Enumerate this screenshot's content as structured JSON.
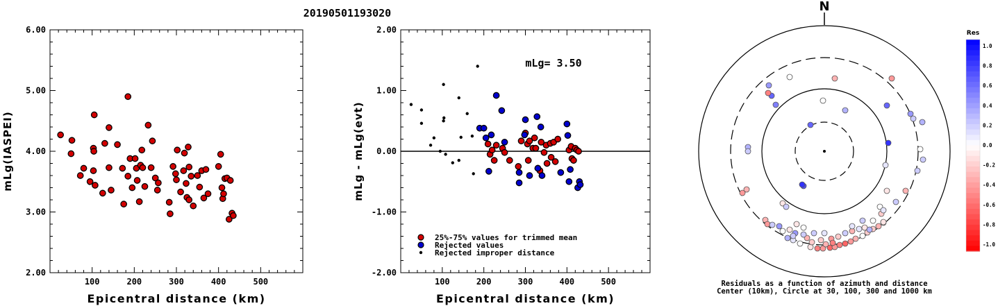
{
  "title": "20190501193020",
  "chart_data": [
    {
      "type": "scatter",
      "xlabel": "Epicentral distance (km)",
      "ylabel": "mLg(IASPEI)",
      "xlim": [
        0,
        600
      ],
      "ylim": [
        2.0,
        6.0
      ],
      "x_ticks": [
        "100",
        "200",
        "300",
        "400",
        "500"
      ],
      "y_ticks": [
        "2.00",
        "3.00",
        "4.00",
        "5.00",
        "6.00"
      ],
      "series": [
        {
          "color": "#d40000",
          "points": [
            [
              25,
              4.27
            ],
            [
              52,
              4.18
            ],
            [
              50,
              3.96
            ],
            [
              72,
              3.6
            ],
            [
              80,
              3.72
            ],
            [
              95,
              3.5
            ],
            [
              103,
              4.05
            ],
            [
              104,
              4.0
            ],
            [
              105,
              4.6
            ],
            [
              103,
              3.68
            ],
            [
              107,
              3.44
            ],
            [
              125,
              3.31
            ],
            [
              130,
              4.13
            ],
            [
              140,
              3.73
            ],
            [
              140,
              4.39
            ],
            [
              145,
              3.36
            ],
            [
              160,
              4.11
            ],
            [
              172,
              3.72
            ],
            [
              175,
              3.13
            ],
            [
              185,
              4.9
            ],
            [
              185,
              3.59
            ],
            [
              190,
              3.88
            ],
            [
              195,
              3.4
            ],
            [
              202,
              3.88
            ],
            [
              205,
              3.72
            ],
            [
              207,
              3.52
            ],
            [
              212,
              3.17
            ],
            [
              215,
              3.77
            ],
            [
              218,
              4.02
            ],
            [
              220,
              3.73
            ],
            [
              225,
              3.42
            ],
            [
              233,
              4.43
            ],
            [
              240,
              3.73
            ],
            [
              243,
              4.17
            ],
            [
              250,
              3.56
            ],
            [
              255,
              3.36
            ],
            [
              257,
              3.48
            ],
            [
              283,
              3.16
            ],
            [
              285,
              2.97
            ],
            [
              292,
              3.75
            ],
            [
              298,
              3.63
            ],
            [
              300,
              3.53
            ],
            [
              302,
              4.02
            ],
            [
              310,
              3.33
            ],
            [
              317,
              3.68
            ],
            [
              319,
              3.97
            ],
            [
              323,
              3.47
            ],
            [
              325,
              3.24
            ],
            [
              328,
              4.07
            ],
            [
              330,
              3.2
            ],
            [
              330,
              3.74
            ],
            [
              335,
              3.59
            ],
            [
              340,
              3.1
            ],
            [
              350,
              3.6
            ],
            [
              355,
              3.41
            ],
            [
              360,
              3.68
            ],
            [
              365,
              3.23
            ],
            [
              370,
              3.7
            ],
            [
              375,
              3.3
            ],
            [
              400,
              3.75
            ],
            [
              405,
              3.95
            ],
            [
              408,
              3.4
            ],
            [
              410,
              3.22
            ],
            [
              412,
              3.3
            ],
            [
              415,
              3.55
            ],
            [
              420,
              3.56
            ],
            [
              425,
              2.88
            ],
            [
              428,
              3.52
            ],
            [
              432,
              2.98
            ],
            [
              435,
              2.94
            ]
          ]
        }
      ]
    },
    {
      "type": "scatter",
      "xlabel": "Epicentral distance (km)",
      "ylabel": "mLg - mLg(evt)",
      "xlim": [
        0,
        600
      ],
      "ylim": [
        -2.0,
        2.0
      ],
      "x_ticks": [
        "100",
        "200",
        "300",
        "400",
        "500"
      ],
      "y_ticks": [
        "-2.00",
        "-1.00",
        "0.00",
        "1.00",
        "2.00"
      ],
      "annotation": "mLg= 3.50",
      "series": [
        {
          "name": "25%-75% values for trimmed mean",
          "color": "#d40000",
          "points": [
            [
              210,
              0.12
            ],
            [
              215,
              -0.05
            ],
            [
              220,
              0.02
            ],
            [
              225,
              -0.15
            ],
            [
              230,
              0.1
            ],
            [
              245,
              0.05
            ],
            [
              250,
              -0.02
            ],
            [
              262,
              -0.15
            ],
            [
              283,
              -0.25
            ],
            [
              290,
              0.17
            ],
            [
              300,
              0.3
            ],
            [
              305,
              0.12
            ],
            [
              307,
              -0.15
            ],
            [
              310,
              0.17
            ],
            [
              318,
              0.05
            ],
            [
              322,
              0.22
            ],
            [
              325,
              0.05
            ],
            [
              330,
              -0.28
            ],
            [
              335,
              -0.32
            ],
            [
              338,
              0.15
            ],
            [
              345,
              -0.02
            ],
            [
              350,
              0.1
            ],
            [
              352,
              -0.2
            ],
            [
              360,
              0.13
            ],
            [
              362,
              -0.1
            ],
            [
              368,
              0.15
            ],
            [
              372,
              -0.17
            ],
            [
              378,
              0.2
            ],
            [
              405,
              0.02
            ],
            [
              410,
              0.08
            ],
            [
              412,
              -0.12
            ],
            [
              416,
              -0.15
            ],
            [
              420,
              0.05
            ],
            [
              424,
              0.02
            ],
            [
              428,
              0.0
            ]
          ]
        },
        {
          "name": "Rejected values",
          "color": "#0000d0",
          "points": [
            [
              190,
              0.38
            ],
            [
              200,
              0.38
            ],
            [
              205,
              0.22
            ],
            [
              212,
              -0.33
            ],
            [
              218,
              0.27
            ],
            [
              230,
              0.92
            ],
            [
              243,
              0.67
            ],
            [
              250,
              0.15
            ],
            [
              285,
              -0.52
            ],
            [
              285,
              -0.35
            ],
            [
              298,
              0.27
            ],
            [
              300,
              0.52
            ],
            [
              310,
              -0.4
            ],
            [
              328,
              0.57
            ],
            [
              330,
              -0.28
            ],
            [
              337,
              0.4
            ],
            [
              340,
              -0.4
            ],
            [
              385,
              -0.35
            ],
            [
              400,
              0.45
            ],
            [
              402,
              0.26
            ],
            [
              405,
              -0.5
            ],
            [
              408,
              -0.3
            ],
            [
              426,
              -0.6
            ],
            [
              430,
              -0.5
            ],
            [
              432,
              -0.55
            ]
          ]
        },
        {
          "name": "Rejected improper distance",
          "color": "#000000",
          "points": [
            [
              25,
              0.77
            ],
            [
              50,
              0.68
            ],
            [
              50,
              0.46
            ],
            [
              72,
              0.1
            ],
            [
              80,
              0.22
            ],
            [
              95,
              0.0
            ],
            [
              103,
              0.5
            ],
            [
              103,
              1.1
            ],
            [
              104,
              0.55
            ],
            [
              108,
              -0.05
            ],
            [
              125,
              -0.19
            ],
            [
              140,
              0.88
            ],
            [
              140,
              -0.15
            ],
            [
              145,
              0.23
            ],
            [
              160,
              0.62
            ],
            [
              172,
              0.25
            ],
            [
              175,
              -0.37
            ],
            [
              185,
              1.4
            ]
          ]
        }
      ]
    },
    {
      "type": "scatter",
      "subtype": "polar-residual-map",
      "north_label": "N",
      "caption_line1": "Residuals as a function of azimuth and distance",
      "caption_line2": "Center (10km), Circle at 30, 100, 300 and 1000 km",
      "colorbar_title": "Res",
      "colorbar_ticks": [
        "1.0",
        "0.8",
        "0.6",
        "0.4",
        "0.2",
        "0.0",
        "-0.2",
        "-0.4",
        "-0.6",
        "-0.8",
        "-1.0"
      ],
      "colorbar_range": [
        -1.0,
        1.0
      ],
      "points_res": [
        [
          -80,
          -95,
          0.4
        ],
        [
          -76,
          -80,
          0.6
        ],
        [
          -70,
          -67,
          0.5
        ],
        [
          -81,
          -84,
          -0.5
        ],
        [
          -50,
          -107,
          0.0
        ],
        [
          15,
          -105,
          -0.3
        ],
        [
          97,
          -105,
          -0.4
        ],
        [
          -2,
          -73,
          0.0
        ],
        [
          30,
          -59,
          0.3
        ],
        [
          90,
          -66,
          0.6
        ],
        [
          124,
          -54,
          0.4
        ],
        [
          128,
          -47,
          0.2
        ],
        [
          141,
          -42,
          0.3
        ],
        [
          -20,
          -38,
          0.6
        ],
        [
          92,
          -12,
          0.8
        ],
        [
          -110,
          -6,
          0.3
        ],
        [
          138,
          -3,
          0.0
        ],
        [
          -110,
          0,
          0.2
        ],
        [
          -112,
          55,
          -0.3
        ],
        [
          -118,
          60,
          -0.4
        ],
        [
          -30,
          50,
          0.7
        ],
        [
          -32,
          48,
          0.8
        ],
        [
          142,
          12,
          0.2
        ],
        [
          134,
          28,
          0.2
        ],
        [
          90,
          57,
          -0.1
        ],
        [
          88,
          20,
          0.1
        ],
        [
          117,
          57,
          -0.3
        ],
        [
          103,
          73,
          0.2
        ],
        [
          -60,
          75,
          -0.1
        ],
        [
          -55,
          80,
          0.2
        ],
        [
          80,
          80,
          0.0
        ],
        [
          82,
          90,
          -0.2
        ],
        [
          85,
          103,
          -0.1
        ],
        [
          -85,
          99,
          -0.3
        ],
        [
          -82,
          105,
          -0.4
        ],
        [
          -75,
          106,
          0.2
        ],
        [
          -65,
          108,
          0.4
        ],
        [
          -50,
          113,
          -0.1
        ],
        [
          -42,
          118,
          0.4
        ],
        [
          -45,
          128,
          0.1
        ],
        [
          -35,
          133,
          0.0
        ],
        [
          -20,
          138,
          -0.1
        ],
        [
          -10,
          140,
          -0.5
        ],
        [
          -2,
          140,
          -0.4
        ],
        [
          8,
          139,
          -0.6
        ],
        [
          15,
          138,
          -0.4
        ],
        [
          22,
          135,
          -0.5
        ],
        [
          30,
          133,
          -0.6
        ],
        [
          38,
          130,
          -0.4
        ],
        [
          45,
          126,
          -0.3
        ],
        [
          55,
          122,
          0.0
        ],
        [
          62,
          117,
          -0.2
        ],
        [
          70,
          112,
          -0.2
        ],
        [
          78,
          108,
          -0.3
        ],
        [
          85,
          102,
          -0.1
        ],
        [
          -25,
          125,
          -0.3
        ],
        [
          -5,
          128,
          -0.2
        ],
        [
          10,
          126,
          -0.4
        ],
        [
          20,
          123,
          -0.2
        ],
        [
          30,
          118,
          0.2
        ],
        [
          40,
          115,
          -0.3
        ],
        [
          50,
          112,
          0.1
        ],
        [
          58,
          110,
          -0.1
        ],
        [
          65,
          113,
          0.3
        ],
        [
          -60,
          115,
          0.0
        ],
        [
          -53,
          125,
          0.3
        ],
        [
          -45,
          122,
          0.2
        ],
        [
          -30,
          120,
          0.2
        ],
        [
          -15,
          118,
          0.2
        ],
        [
          0,
          118,
          0.1
        ],
        [
          -18,
          131,
          -0.2
        ],
        [
          2,
          134,
          -0.3
        ],
        [
          12,
          132,
          -0.5
        ],
        [
          70,
          100,
          0.0
        ],
        [
          55,
          100,
          0.2
        ],
        [
          40,
          108,
          0.1
        ],
        [
          -40,
          105,
          -0.1
        ],
        [
          -30,
          110,
          0.0
        ],
        [
          85,
          85,
          0.1
        ]
      ]
    }
  ]
}
